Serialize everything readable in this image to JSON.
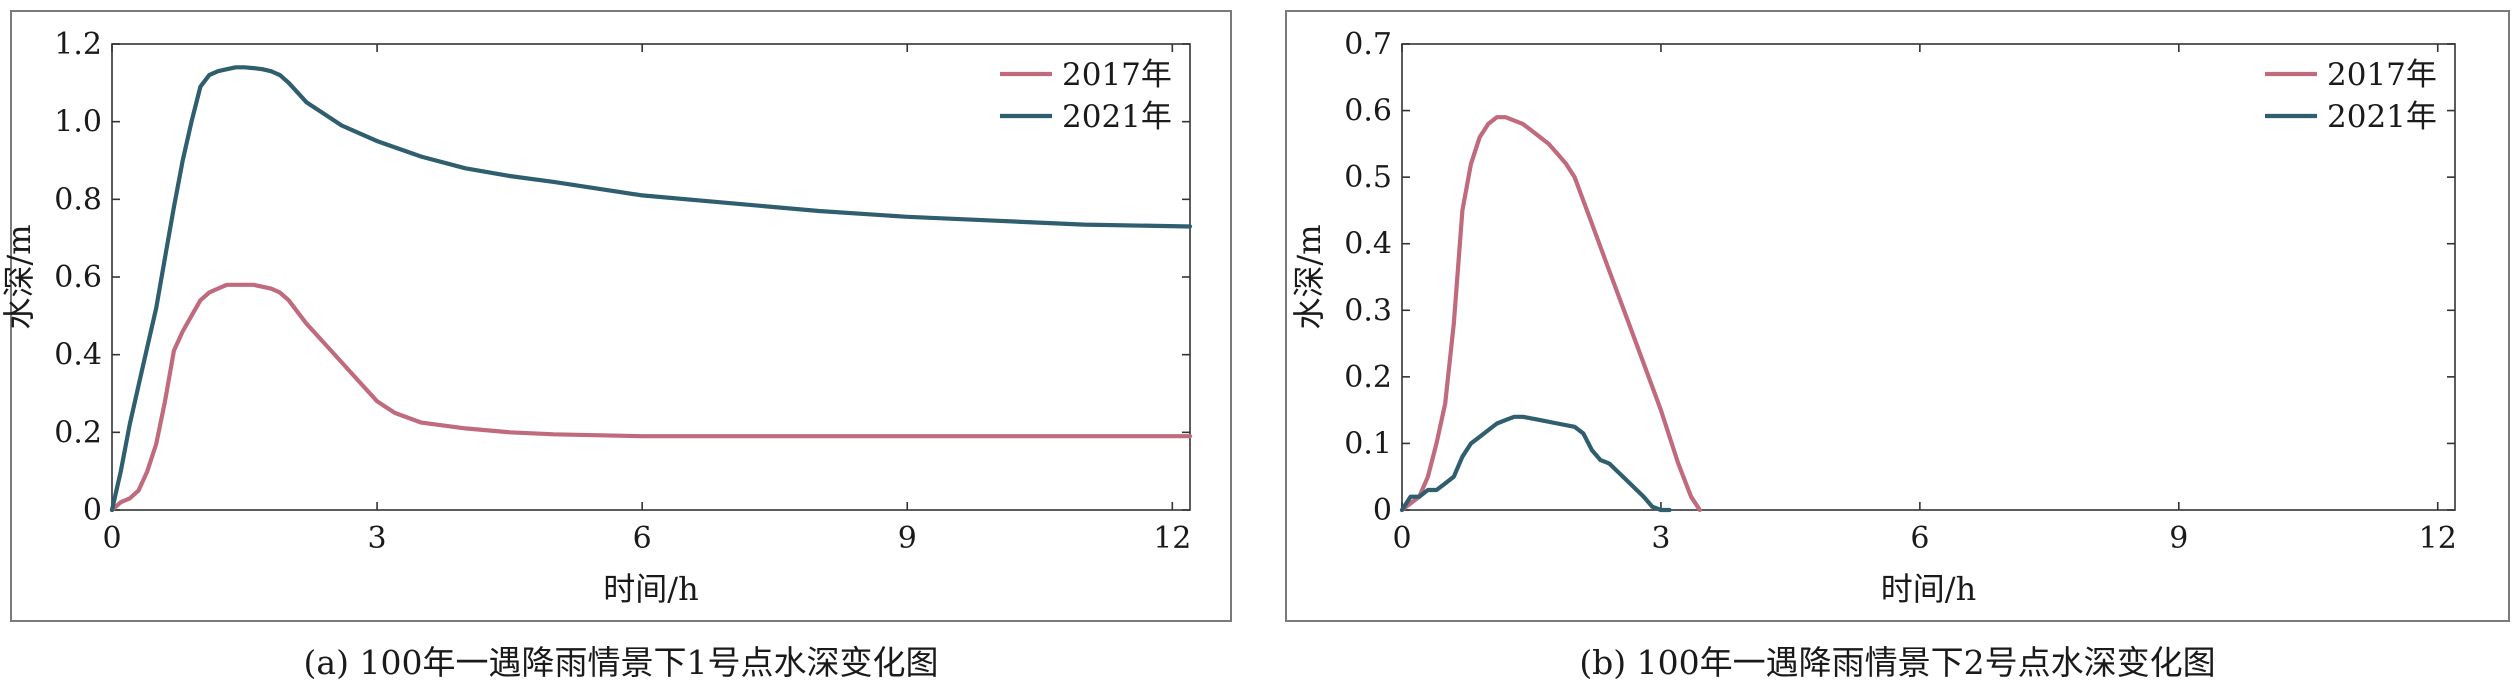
{
  "captions": {
    "a": "(a) 100年一遇降雨情景下1号点水深变化图",
    "b": "(b) 100年一遇降雨情景下2号点水深变化图"
  },
  "colors": {
    "s2017": "#c06a7e",
    "s2021": "#2f5e6e",
    "axis": "#333333",
    "frame": "#7a7a7a"
  },
  "chart_data": [
    {
      "type": "line",
      "title": "",
      "xlabel": "时间/h",
      "ylabel": "水深/m",
      "xlim": [
        0,
        12.2
      ],
      "ylim": [
        0,
        1.2
      ],
      "xticks": [
        0,
        3,
        6,
        9,
        12
      ],
      "xtick_labels": [
        "0",
        "3",
        "6",
        "9",
        "12"
      ],
      "yticks": [
        0,
        0.2,
        0.4,
        0.6,
        0.8,
        1.0,
        1.2
      ],
      "ytick_labels": [
        "0",
        "0.2",
        "0.4",
        "0.6",
        "0.8",
        "1.0",
        "1.2"
      ],
      "legend_position": "top-right",
      "series": [
        {
          "name": "2017年",
          "color_key": "s2017",
          "x": [
            0,
            0.1,
            0.2,
            0.3,
            0.4,
            0.5,
            0.6,
            0.7,
            0.8,
            0.9,
            1.0,
            1.1,
            1.2,
            1.3,
            1.4,
            1.5,
            1.6,
            1.7,
            1.8,
            1.9,
            2.0,
            2.2,
            2.4,
            2.6,
            2.8,
            3.0,
            3.2,
            3.5,
            4.0,
            4.5,
            5.0,
            6.0,
            7.0,
            8.0,
            9.0,
            10.0,
            11.0,
            12.2
          ],
          "y": [
            0,
            0.02,
            0.03,
            0.05,
            0.1,
            0.17,
            0.28,
            0.41,
            0.46,
            0.5,
            0.54,
            0.56,
            0.57,
            0.58,
            0.58,
            0.58,
            0.58,
            0.575,
            0.57,
            0.56,
            0.54,
            0.48,
            0.43,
            0.38,
            0.33,
            0.28,
            0.25,
            0.225,
            0.21,
            0.2,
            0.195,
            0.19,
            0.19,
            0.19,
            0.19,
            0.19,
            0.19,
            0.19
          ]
        },
        {
          "name": "2021年",
          "color_key": "s2021",
          "x": [
            0,
            0.1,
            0.2,
            0.3,
            0.4,
            0.5,
            0.6,
            0.7,
            0.8,
            0.9,
            1.0,
            1.1,
            1.2,
            1.3,
            1.4,
            1.5,
            1.6,
            1.7,
            1.8,
            1.9,
            2.0,
            2.2,
            2.4,
            2.6,
            2.8,
            3.0,
            3.5,
            4.0,
            4.5,
            5.0,
            6.0,
            7.0,
            8.0,
            9.0,
            10.0,
            11.0,
            12.2
          ],
          "y": [
            0,
            0.1,
            0.22,
            0.32,
            0.42,
            0.52,
            0.65,
            0.78,
            0.9,
            1.0,
            1.09,
            1.12,
            1.13,
            1.135,
            1.14,
            1.14,
            1.138,
            1.135,
            1.13,
            1.12,
            1.1,
            1.05,
            1.02,
            0.99,
            0.97,
            0.95,
            0.91,
            0.88,
            0.86,
            0.845,
            0.81,
            0.79,
            0.77,
            0.755,
            0.745,
            0.735,
            0.73
          ]
        }
      ]
    },
    {
      "type": "line",
      "title": "",
      "xlabel": "时间/h",
      "ylabel": "水深/m",
      "xlim": [
        0,
        12.2
      ],
      "ylim": [
        0,
        0.7
      ],
      "xticks": [
        0,
        3,
        6,
        9,
        12
      ],
      "xtick_labels": [
        "0",
        "3",
        "6",
        "9",
        "12"
      ],
      "yticks": [
        0,
        0.1,
        0.2,
        0.3,
        0.4,
        0.5,
        0.6,
        0.7
      ],
      "ytick_labels": [
        "0",
        "0.1",
        "0.2",
        "0.3",
        "0.4",
        "0.5",
        "0.6",
        "0.7"
      ],
      "legend_position": "top-right",
      "series": [
        {
          "name": "2017年",
          "color_key": "s2017",
          "x": [
            0,
            0.1,
            0.2,
            0.3,
            0.4,
            0.5,
            0.6,
            0.7,
            0.8,
            0.9,
            1.0,
            1.1,
            1.2,
            1.3,
            1.4,
            1.5,
            1.6,
            1.7,
            1.8,
            1.9,
            2.0,
            2.2,
            2.4,
            2.6,
            2.8,
            3.0,
            3.2,
            3.35,
            3.45
          ],
          "y": [
            0,
            0.01,
            0.02,
            0.05,
            0.1,
            0.16,
            0.28,
            0.45,
            0.52,
            0.56,
            0.58,
            0.59,
            0.59,
            0.585,
            0.58,
            0.57,
            0.56,
            0.55,
            0.535,
            0.52,
            0.5,
            0.43,
            0.36,
            0.29,
            0.22,
            0.15,
            0.07,
            0.02,
            0
          ]
        },
        {
          "name": "2021年",
          "color_key": "s2021",
          "x": [
            0,
            0.1,
            0.2,
            0.3,
            0.4,
            0.5,
            0.6,
            0.7,
            0.8,
            0.9,
            1.0,
            1.1,
            1.2,
            1.3,
            1.4,
            1.6,
            1.8,
            2.0,
            2.1,
            2.2,
            2.3,
            2.4,
            2.6,
            2.8,
            2.9,
            3.0,
            3.1
          ],
          "y": [
            0,
            0.02,
            0.02,
            0.03,
            0.03,
            0.04,
            0.05,
            0.08,
            0.1,
            0.11,
            0.12,
            0.13,
            0.135,
            0.14,
            0.14,
            0.135,
            0.13,
            0.125,
            0.115,
            0.09,
            0.075,
            0.07,
            0.045,
            0.02,
            0.005,
            0,
            0
          ]
        }
      ]
    }
  ]
}
